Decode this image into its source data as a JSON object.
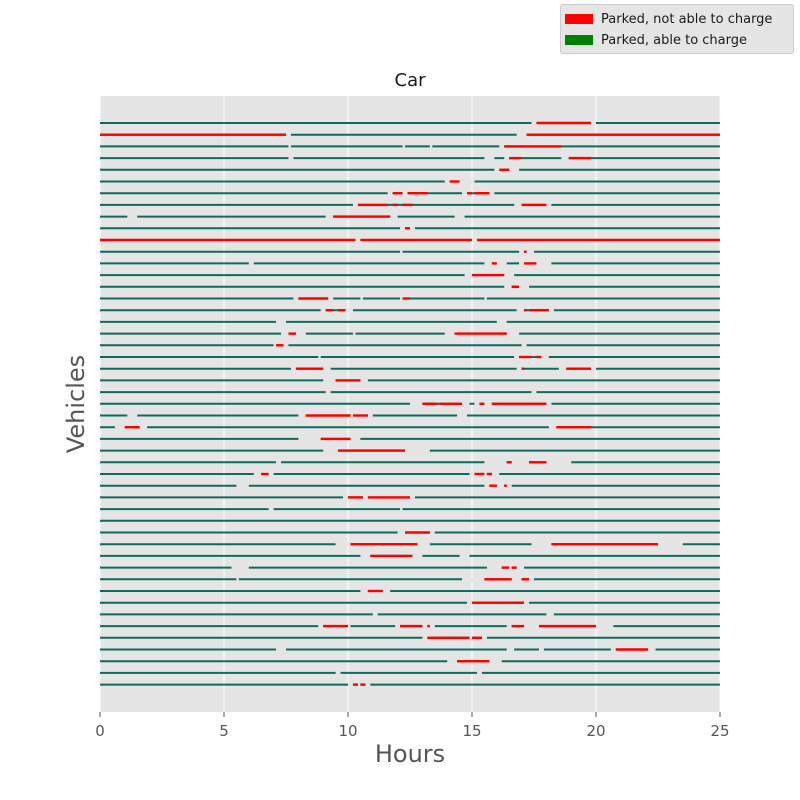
{
  "chart_data": {
    "type": "timeline",
    "title": "Car",
    "xlabel": "Hours",
    "ylabel": "Vehicles",
    "xlim": [
      0,
      25
    ],
    "xticks": [
      0,
      5,
      10,
      15,
      20,
      25
    ],
    "grid": true,
    "legend_position": "top-right",
    "legend": [
      {
        "label": "Parked, not able to charge",
        "color": "#ff0000"
      },
      {
        "label": "Parked, able to charge",
        "color": "#008000"
      }
    ],
    "vehicles": [
      {
        "red": [
          [
            17.6,
            19.8
          ]
        ],
        "gaps": [
          [
            17.4,
            17.6
          ],
          [
            19.8,
            20.0
          ]
        ]
      },
      {
        "red": [
          [
            0,
            7.5
          ],
          [
            17.2,
            25
          ]
        ],
        "gaps": [
          [
            7.5,
            7.7
          ],
          [
            16.8,
            17.2
          ]
        ]
      },
      {
        "red": [
          [
            16.3,
            18.6
          ]
        ],
        "gaps": [
          [
            7.6,
            7.7
          ],
          [
            12.2,
            12.3
          ],
          [
            13.3,
            13.4
          ],
          [
            16.1,
            16.3
          ]
        ]
      },
      {
        "red": [
          [
            16.5,
            17.0
          ],
          [
            18.9,
            19.8
          ]
        ],
        "gaps": [
          [
            7.6,
            7.8
          ],
          [
            15.5,
            15.9
          ],
          [
            16.3,
            16.5
          ],
          [
            18.6,
            18.9
          ]
        ]
      },
      {
        "red": [
          [
            16.1,
            16.5
          ]
        ],
        "gaps": [
          [
            15.9,
            16.1
          ],
          [
            16.5,
            16.9
          ]
        ]
      },
      {
        "red": [
          [
            14.1,
            14.5
          ]
        ],
        "gaps": [
          [
            13.9,
            14.1
          ],
          [
            14.5,
            15.1
          ]
        ]
      },
      {
        "red": [
          [
            11.8,
            12.2
          ],
          [
            12.4,
            13.2
          ],
          [
            14.8,
            15.0
          ],
          [
            15.1,
            15.7
          ]
        ],
        "gaps": [
          [
            11.6,
            11.8
          ],
          [
            12.2,
            12.4
          ],
          [
            14.6,
            14.8
          ],
          [
            15.7,
            15.9
          ]
        ]
      },
      {
        "red": [
          [
            10.4,
            11.6
          ],
          [
            11.8,
            12.0
          ],
          [
            12.2,
            12.6
          ],
          [
            17.0,
            18.0
          ]
        ],
        "gaps": [
          [
            10.2,
            10.4
          ],
          [
            16.7,
            17.0
          ],
          [
            18.0,
            18.2
          ]
        ]
      },
      {
        "red": [
          [
            9.4,
            11.7
          ]
        ],
        "gaps": [
          [
            1.1,
            1.5
          ],
          [
            9.1,
            9.4
          ],
          [
            11.7,
            12.0
          ],
          [
            14.3,
            14.7
          ]
        ]
      },
      {
        "red": [
          [
            12.3,
            12.5
          ]
        ],
        "gaps": [
          [
            12.1,
            12.3
          ],
          [
            12.5,
            12.7
          ]
        ]
      },
      {
        "red": [
          [
            0,
            10.3
          ],
          [
            10.5,
            15.0
          ],
          [
            15.2,
            25
          ]
        ],
        "gaps": [
          [
            10.3,
            10.5
          ],
          [
            15.0,
            15.2
          ]
        ]
      },
      {
        "red": [
          [
            17.1,
            17.2
          ]
        ],
        "gaps": [
          [
            12.1,
            12.2
          ],
          [
            16.9,
            17.1
          ],
          [
            17.2,
            17.5
          ]
        ]
      },
      {
        "red": [
          [
            15.8,
            16.0
          ],
          [
            17.1,
            17.6
          ]
        ],
        "gaps": [
          [
            6.0,
            6.2
          ],
          [
            15.5,
            15.8
          ],
          [
            16.0,
            16.4
          ],
          [
            16.9,
            17.1
          ],
          [
            17.6,
            18.2
          ]
        ]
      },
      {
        "red": [
          [
            15.0,
            16.3
          ]
        ],
        "gaps": [
          [
            14.7,
            15.0
          ],
          [
            16.3,
            16.7
          ]
        ]
      },
      {
        "red": [
          [
            16.6,
            16.9
          ]
        ],
        "gaps": [
          [
            16.3,
            16.6
          ],
          [
            16.9,
            17.3
          ]
        ]
      },
      {
        "red": [
          [
            8.0,
            9.2
          ],
          [
            12.2,
            12.5
          ]
        ],
        "gaps": [
          [
            7.8,
            8.0
          ],
          [
            9.2,
            9.4
          ],
          [
            10.5,
            10.6
          ],
          [
            12.1,
            12.2
          ],
          [
            15.5,
            15.6
          ]
        ]
      },
      {
        "red": [
          [
            9.1,
            9.4
          ],
          [
            9.6,
            9.9
          ],
          [
            17.1,
            17.2
          ],
          [
            17.3,
            18.1
          ]
        ],
        "gaps": [
          [
            8.9,
            9.1
          ],
          [
            9.9,
            10.2
          ],
          [
            16.8,
            17.1
          ],
          [
            18.1,
            18.3
          ]
        ]
      },
      {
        "red": [],
        "gaps": [
          [
            7.1,
            7.5
          ],
          [
            16.0,
            16.4
          ]
        ]
      },
      {
        "red": [
          [
            7.6,
            7.9
          ],
          [
            14.3,
            15.6
          ],
          [
            15.6,
            16.4
          ]
        ],
        "gaps": [
          [
            7.3,
            7.6
          ],
          [
            7.9,
            8.3
          ],
          [
            10.2,
            10.3
          ],
          [
            13.9,
            14.3
          ],
          [
            16.4,
            16.9
          ]
        ]
      },
      {
        "red": [
          [
            7.1,
            7.4
          ]
        ],
        "gaps": [
          [
            7.0,
            7.1
          ],
          [
            7.4,
            7.6
          ],
          [
            17.0,
            17.2
          ]
        ]
      },
      {
        "red": [
          [
            16.9,
            17.4
          ],
          [
            17.6,
            17.8
          ]
        ],
        "gaps": [
          [
            8.8,
            8.9
          ],
          [
            16.7,
            16.9
          ],
          [
            17.8,
            18.1
          ]
        ]
      },
      {
        "red": [
          [
            7.9,
            9.0
          ],
          [
            17.0,
            17.1
          ],
          [
            18.8,
            19.8
          ]
        ],
        "gaps": [
          [
            7.7,
            7.9
          ],
          [
            9.0,
            9.3
          ],
          [
            16.8,
            17.0
          ],
          [
            18.5,
            18.8
          ],
          [
            19.8,
            20.0
          ]
        ]
      },
      {
        "red": [
          [
            9.5,
            10.5
          ]
        ],
        "gaps": [
          [
            9.0,
            9.5
          ],
          [
            10.5,
            10.8
          ]
        ]
      },
      {
        "red": [],
        "gaps": [
          [
            9.1,
            9.3
          ],
          [
            17.4,
            17.6
          ]
        ]
      },
      {
        "red": [
          [
            13.0,
            13.6
          ],
          [
            13.7,
            14.6
          ],
          [
            15.3,
            15.5
          ],
          [
            15.8,
            18.0
          ]
        ],
        "gaps": [
          [
            12.5,
            13.0
          ],
          [
            14.6,
            14.9
          ],
          [
            15.1,
            15.3
          ],
          [
            15.5,
            15.8
          ],
          [
            18.0,
            18.2
          ]
        ]
      },
      {
        "red": [
          [
            8.3,
            10.1
          ],
          [
            10.2,
            10.8
          ]
        ],
        "gaps": [
          [
            1.1,
            1.5
          ],
          [
            8.0,
            8.3
          ],
          [
            10.1,
            10.2
          ],
          [
            10.8,
            11.0
          ],
          [
            14.4,
            14.8
          ]
        ]
      },
      {
        "red": [
          [
            1.0,
            1.6
          ],
          [
            18.4,
            19.8
          ]
        ],
        "gaps": [
          [
            0.6,
            1.0
          ],
          [
            1.6,
            1.9
          ],
          [
            18.1,
            18.4
          ]
        ]
      },
      {
        "red": [
          [
            8.9,
            10.1
          ]
        ],
        "gaps": [
          [
            8.0,
            8.9
          ],
          [
            10.1,
            10.5
          ]
        ]
      },
      {
        "red": [
          [
            9.6,
            12.3
          ]
        ],
        "gaps": [
          [
            9.0,
            9.6
          ],
          [
            12.3,
            13.3
          ]
        ]
      },
      {
        "red": [
          [
            16.4,
            16.6
          ],
          [
            17.3,
            18.0
          ]
        ],
        "gaps": [
          [
            7.1,
            7.3
          ],
          [
            15.5,
            16.4
          ],
          [
            16.6,
            17.3
          ],
          [
            18.0,
            19.0
          ]
        ]
      },
      {
        "red": [
          [
            6.5,
            6.8
          ],
          [
            15.1,
            15.5
          ],
          [
            15.6,
            15.8
          ]
        ],
        "gaps": [
          [
            6.2,
            6.5
          ],
          [
            6.8,
            7.0
          ],
          [
            14.9,
            15.1
          ],
          [
            15.5,
            15.6
          ],
          [
            15.8,
            16.1
          ]
        ]
      },
      {
        "red": [
          [
            15.7,
            16.0
          ],
          [
            16.3,
            16.4
          ]
        ],
        "gaps": [
          [
            5.5,
            6.0
          ],
          [
            15.5,
            15.7
          ],
          [
            16.0,
            16.3
          ],
          [
            16.4,
            16.6
          ]
        ]
      },
      {
        "red": [
          [
            10.0,
            10.6
          ],
          [
            10.8,
            12.5
          ]
        ],
        "gaps": [
          [
            9.8,
            10.0
          ],
          [
            10.6,
            10.8
          ],
          [
            12.5,
            12.7
          ]
        ]
      },
      {
        "red": [],
        "gaps": [
          [
            6.8,
            7.0
          ],
          [
            12.1,
            12.2
          ]
        ]
      },
      {
        "red": [],
        "gaps": []
      },
      {
        "red": [
          [
            12.3,
            13.3
          ]
        ],
        "gaps": [
          [
            12.0,
            12.3
          ],
          [
            13.3,
            13.5
          ]
        ]
      },
      {
        "red": [
          [
            10.1,
            12.8
          ],
          [
            18.2,
            22.5
          ]
        ],
        "gaps": [
          [
            9.5,
            10.1
          ],
          [
            12.8,
            13.3
          ],
          [
            17.4,
            18.2
          ],
          [
            22.5,
            23.5
          ]
        ]
      },
      {
        "red": [
          [
            10.9,
            12.6
          ]
        ],
        "gaps": [
          [
            10.5,
            10.9
          ],
          [
            12.6,
            13.0
          ],
          [
            14.5,
            14.9
          ]
        ]
      },
      {
        "red": [
          [
            16.2,
            16.5
          ],
          [
            16.6,
            16.8
          ]
        ],
        "gaps": [
          [
            5.3,
            6.0
          ],
          [
            15.6,
            16.2
          ],
          [
            16.5,
            16.6
          ],
          [
            16.8,
            17.1
          ]
        ]
      },
      {
        "red": [
          [
            15.5,
            16.6
          ],
          [
            17.0,
            17.3
          ]
        ],
        "gaps": [
          [
            5.5,
            5.6
          ],
          [
            14.6,
            15.5
          ],
          [
            16.6,
            17.0
          ],
          [
            17.3,
            17.5
          ]
        ]
      },
      {
        "red": [
          [
            10.8,
            11.4
          ]
        ],
        "gaps": [
          [
            10.5,
            10.8
          ],
          [
            11.4,
            11.7
          ]
        ]
      },
      {
        "red": [
          [
            15.0,
            17.1
          ]
        ],
        "gaps": [
          [
            14.8,
            15.0
          ],
          [
            17.1,
            17.3
          ]
        ]
      },
      {
        "red": [],
        "gaps": [
          [
            11.0,
            11.2
          ],
          [
            18.0,
            18.3
          ]
        ]
      },
      {
        "red": [
          [
            9.0,
            10.0
          ],
          [
            12.1,
            13.0
          ],
          [
            13.2,
            13.3
          ],
          [
            16.6,
            17.1
          ],
          [
            17.7,
            20.0
          ]
        ],
        "gaps": [
          [
            8.8,
            9.0
          ],
          [
            10.0,
            10.1
          ],
          [
            11.9,
            12.1
          ],
          [
            13.0,
            13.2
          ],
          [
            13.3,
            13.5
          ],
          [
            16.4,
            16.6
          ],
          [
            17.1,
            17.7
          ],
          [
            20.0,
            20.7
          ]
        ]
      },
      {
        "red": [
          [
            13.2,
            13.8
          ],
          [
            13.8,
            14.9
          ],
          [
            15.0,
            15.4
          ]
        ],
        "gaps": [
          [
            13.0,
            13.2
          ],
          [
            14.9,
            15.0
          ],
          [
            15.4,
            15.6
          ]
        ]
      },
      {
        "red": [
          [
            20.8,
            22.1
          ]
        ],
        "gaps": [
          [
            7.1,
            7.5
          ],
          [
            16.4,
            16.7
          ],
          [
            17.7,
            17.9
          ],
          [
            20.6,
            20.8
          ],
          [
            22.1,
            22.4
          ]
        ]
      },
      {
        "red": [
          [
            14.4,
            15.7
          ]
        ],
        "gaps": [
          [
            14.0,
            14.4
          ],
          [
            15.7,
            16.2
          ]
        ]
      },
      {
        "red": [],
        "gaps": [
          [
            9.5,
            9.7
          ],
          [
            15.2,
            15.4
          ]
        ]
      },
      {
        "red": [
          [
            10.2,
            10.4
          ],
          [
            10.5,
            10.7
          ]
        ],
        "gaps": [
          [
            10.0,
            10.2
          ],
          [
            10.4,
            10.5
          ],
          [
            10.7,
            10.9
          ]
        ]
      }
    ]
  }
}
